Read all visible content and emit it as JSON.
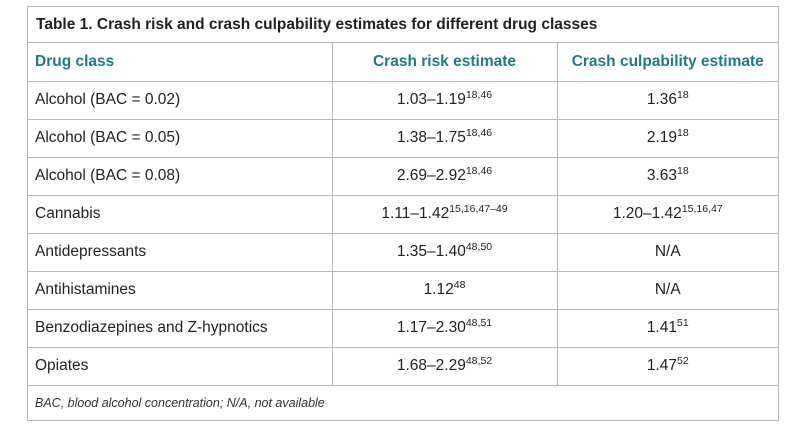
{
  "table": {
    "caption": "Table 1. Crash risk and crash culpability estimates for different drug classes",
    "headers": {
      "drug_class": "Drug class",
      "crash_risk": "Crash risk estimate",
      "culpability": "Crash culpability estimate"
    },
    "rows": [
      {
        "drug": "Alcohol (BAC = 0.02)",
        "risk": "1.03–1.19",
        "risk_ref": "18,46",
        "culp": "1.36",
        "culp_ref": "18"
      },
      {
        "drug": "Alcohol (BAC = 0.05)",
        "risk": "1.38–1.75",
        "risk_ref": "18,46",
        "culp": "2.19",
        "culp_ref": "18"
      },
      {
        "drug": "Alcohol (BAC = 0.08)",
        "risk": "2.69–2.92",
        "risk_ref": "18,46",
        "culp": "3.63",
        "culp_ref": "18"
      },
      {
        "drug": "Cannabis",
        "risk": "1.11–1.42",
        "risk_ref": "15,16,47–49",
        "culp": "1.20–1.42",
        "culp_ref": "15,16,47"
      },
      {
        "drug": "Antidepressants",
        "risk": "1.35–1.40",
        "risk_ref": "48,50",
        "culp": "N/A",
        "culp_ref": ""
      },
      {
        "drug": "Antihistamines",
        "risk": "1.12",
        "risk_ref": "48",
        "culp": "N/A",
        "culp_ref": ""
      },
      {
        "drug": "Benzodiazepines and Z-hypnotics",
        "risk": "1.17–2.30",
        "risk_ref": "48,51",
        "culp": "1.41",
        "culp_ref": "51"
      },
      {
        "drug": "Opiates",
        "risk": "1.68–2.29",
        "risk_ref": "48,52",
        "culp": "1.47",
        "culp_ref": "52"
      }
    ],
    "footnote": "BAC, blood alcohol concentration; N/A, not available"
  },
  "colors": {
    "header_text": "#1f7a86",
    "border": "#b9b9b9",
    "body_text": "#222222"
  }
}
